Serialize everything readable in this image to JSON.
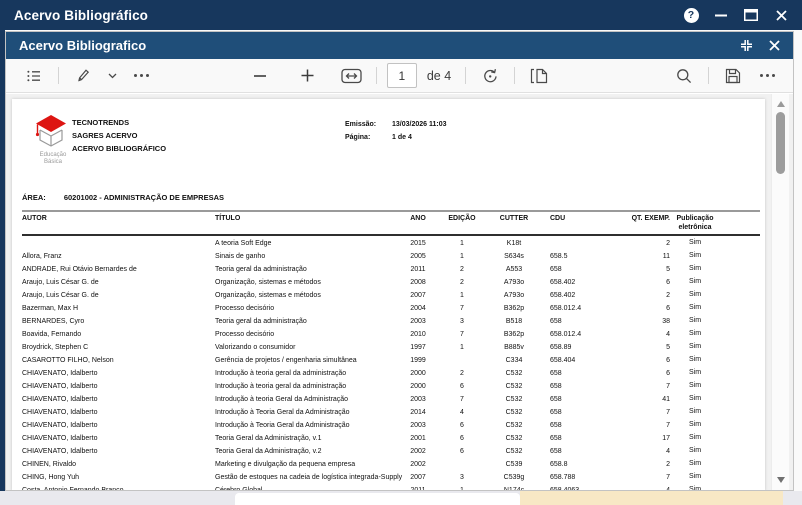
{
  "window": {
    "title": "Acervo Bibliográfico",
    "controls": [
      "help",
      "minimize",
      "maximize",
      "close"
    ]
  },
  "dialog": {
    "title": "Acervo Bibliografico",
    "controls": [
      "collapse",
      "close"
    ]
  },
  "toolbar": {
    "page_value": "1",
    "page_total_label": "de 4",
    "icons": [
      "table-of-contents",
      "highlighter",
      "highlighter-menu",
      "more-tools",
      "zoom-out",
      "zoom-in",
      "fit-to-width",
      "rotate",
      "page-view",
      "search",
      "save",
      "more-options"
    ]
  },
  "report": {
    "org_lines": [
      "TECNOTRENDS",
      "SAGRES ACERVO",
      "ACERVO BIBLIOGRÁFICO"
    ],
    "logo_caption_line1": "Educação",
    "logo_caption_line2": "Básica",
    "emissao_label": "Emissão:",
    "emissao_value": "13/03/2026 11:03",
    "pagina_label": "Página:",
    "pagina_value": "1 de 4",
    "area_label": "ÁREA:",
    "area_value": "60201002 - ADMINISTRAÇÃO DE EMPRESAS",
    "table": {
      "headers": [
        "AUTOR",
        "TÍTULO",
        "ANO",
        "EDIÇÃO",
        "CUTTER",
        "CDU",
        "QT. EXEMP.",
        "Publicação eletrônica"
      ],
      "rows": [
        [
          "",
          "A teoria Soft Edge",
          "2015",
          "1",
          "K18t",
          "",
          "2",
          "Sim"
        ],
        [
          "Allora, Franz",
          "Sinais de ganho",
          "2005",
          "1",
          "S634s",
          "658.5",
          "11",
          "Sim"
        ],
        [
          "ANDRADE, Rui Otávio Bernardes de",
          "Teoria geral da administração",
          "2011",
          "2",
          "A553",
          "658",
          "5",
          "Sim"
        ],
        [
          "Araujo, Luis César G. de",
          "Organização, sistemas e métodos",
          "2008",
          "2",
          "A793o",
          "658.402",
          "6",
          "Sim"
        ],
        [
          "Araujo, Luis César G. de",
          "Organização, sistemas e métodos",
          "2007",
          "1",
          "A793o",
          "658.402",
          "2",
          "Sim"
        ],
        [
          "Bazerman, Max H",
          "Processo decisório",
          "2004",
          "7",
          "B362p",
          "658.012.4",
          "6",
          "Sim"
        ],
        [
          "BERNARDES, Cyro",
          "Teoria geral da administração",
          "2003",
          "3",
          "B518",
          "658",
          "38",
          "Sim"
        ],
        [
          "Boavida, Fernando",
          "Processo decisório",
          "2010",
          "7",
          "B362p",
          "658.012.4",
          "4",
          "Sim"
        ],
        [
          "Broydrick, Stephen C",
          "Valorizando o consumidor",
          "1997",
          "1",
          "B885v",
          "658.89",
          "5",
          "Sim"
        ],
        [
          "CASAROTTO FILHO, Nelson",
          "Gerência de projetos / engenharia simultânea",
          "1999",
          "",
          "C334",
          "658.404",
          "6",
          "Sim"
        ],
        [
          "CHIAVENATO, Idalberto",
          "Introdução à teoria geral da administração",
          "2000",
          "2",
          "C532",
          "658",
          "6",
          "Sim"
        ],
        [
          "CHIAVENATO, Idalberto",
          "Introdução à teoria geral da administração",
          "2000",
          "6",
          "C532",
          "658",
          "7",
          "Sim"
        ],
        [
          "CHIAVENATO, Idalberto",
          "Introdução à teoria Geral da Administração",
          "2003",
          "7",
          "C532",
          "658",
          "41",
          "Sim"
        ],
        [
          "CHIAVENATO, Idalberto",
          "Introdução à Teoria Geral da Administração",
          "2014",
          "4",
          "C532",
          "658",
          "7",
          "Sim"
        ],
        [
          "CHIAVENATO, Idalberto",
          "Introdução à Teoria Geral da Administração",
          "2003",
          "6",
          "C532",
          "658",
          "7",
          "Sim"
        ],
        [
          "CHIAVENATO, Idalberto",
          "Teoria Geral da Administração, v.1",
          "2001",
          "6",
          "C532",
          "658",
          "17",
          "Sim"
        ],
        [
          "CHIAVENATO, Idalberto",
          "Teoria Geral da Administração, v.2",
          "2002",
          "6",
          "C532",
          "658",
          "4",
          "Sim"
        ],
        [
          "CHINEN, Rivaldo",
          "Marketing e divulgação da pequena empresa",
          "2002",
          "",
          "C539",
          "658.8",
          "2",
          "Sim"
        ],
        [
          "CHING, Hong Yuh",
          "Gestão de estoques na cadeia de logística integrada-Supply",
          "2007",
          "3",
          "C539g",
          "658.788",
          "7",
          "Sim"
        ],
        [
          "Costa, Antonio Fernando Branco",
          "Cérebro Global",
          "2011",
          "1",
          "N174c",
          "658.4063",
          "4",
          "Sim"
        ]
      ]
    }
  },
  "colors": {
    "titlebar_outer": "#17375D",
    "titlebar_inner": "#1F4E79",
    "logo_red": "#DD1512",
    "backdrop_tan": "#F8E8C5"
  }
}
